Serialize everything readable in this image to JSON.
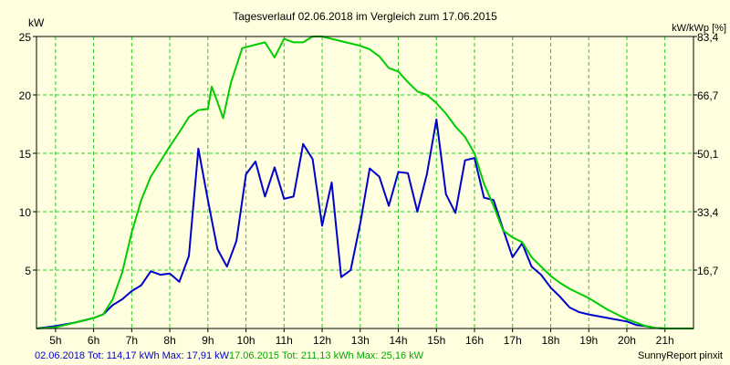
{
  "chart_data": {
    "type": "line",
    "title": "Tagesverlauf 02.06.2018 im Vergleich zum 17.06.2015",
    "ylabel_left": "kW",
    "ylabel_right": "kW/kWp [%]",
    "x_ticks": [
      "5h",
      "6h",
      "7h",
      "8h",
      "9h",
      "10h",
      "11h",
      "12h",
      "13h",
      "14h",
      "15h",
      "16h",
      "17h",
      "18h",
      "19h",
      "20h",
      "21h"
    ],
    "xlim": [
      4.5,
      21.75
    ],
    "y_ticks_left": [
      "5",
      "10",
      "15",
      "20",
      "25"
    ],
    "y_ticks_right": [
      "16,7",
      "33,4",
      "50,1",
      "66,7",
      "83,4"
    ],
    "ylim": [
      0,
      25
    ],
    "grid": true,
    "series": [
      {
        "name": "02.06.2018",
        "color": "#0000cc",
        "points": [
          [
            4.5,
            0
          ],
          [
            5,
            0.2
          ],
          [
            5.5,
            0.5
          ],
          [
            6,
            0.9
          ],
          [
            6.25,
            1.2
          ],
          [
            6.5,
            2.0
          ],
          [
            6.75,
            2.5
          ],
          [
            7,
            3.2
          ],
          [
            7.25,
            3.7
          ],
          [
            7.5,
            4.9
          ],
          [
            7.75,
            4.6
          ],
          [
            8,
            4.7
          ],
          [
            8.25,
            4.0
          ],
          [
            8.5,
            6.2
          ],
          [
            8.75,
            15.4
          ],
          [
            9,
            11.0
          ],
          [
            9.25,
            6.8
          ],
          [
            9.5,
            5.3
          ],
          [
            9.75,
            7.5
          ],
          [
            10,
            13.2
          ],
          [
            10.25,
            14.3
          ],
          [
            10.5,
            11.3
          ],
          [
            10.75,
            13.8
          ],
          [
            11,
            11.1
          ],
          [
            11.25,
            11.3
          ],
          [
            11.5,
            15.8
          ],
          [
            11.75,
            14.5
          ],
          [
            12,
            8.8
          ],
          [
            12.25,
            12.5
          ],
          [
            12.5,
            4.4
          ],
          [
            12.75,
            5.0
          ],
          [
            13,
            9.0
          ],
          [
            13.25,
            13.7
          ],
          [
            13.5,
            13.0
          ],
          [
            13.75,
            10.5
          ],
          [
            14,
            13.4
          ],
          [
            14.25,
            13.3
          ],
          [
            14.5,
            10.0
          ],
          [
            14.75,
            13.2
          ],
          [
            15,
            17.9
          ],
          [
            15.25,
            11.5
          ],
          [
            15.5,
            9.9
          ],
          [
            15.75,
            14.4
          ],
          [
            16,
            14.6
          ],
          [
            16.25,
            11.2
          ],
          [
            16.5,
            11.0
          ],
          [
            16.75,
            8.5
          ],
          [
            17,
            6.1
          ],
          [
            17.25,
            7.3
          ],
          [
            17.5,
            5.3
          ],
          [
            17.75,
            4.6
          ],
          [
            18,
            3.5
          ],
          [
            18.25,
            2.7
          ],
          [
            18.5,
            1.8
          ],
          [
            18.75,
            1.4
          ],
          [
            19,
            1.2
          ],
          [
            19.5,
            0.9
          ],
          [
            20,
            0.6
          ],
          [
            20.25,
            0.3
          ],
          [
            20.5,
            0.2
          ],
          [
            20.75,
            0.05
          ],
          [
            21,
            0
          ],
          [
            21.75,
            0
          ]
        ]
      },
      {
        "name": "17.06.2015",
        "color": "#00cc00",
        "points": [
          [
            4.5,
            0
          ],
          [
            5,
            0.1
          ],
          [
            5.5,
            0.5
          ],
          [
            6,
            0.9
          ],
          [
            6.25,
            1.2
          ],
          [
            6.5,
            2.5
          ],
          [
            6.75,
            4.8
          ],
          [
            7,
            8.2
          ],
          [
            7.25,
            11.0
          ],
          [
            7.5,
            13.0
          ],
          [
            7.75,
            14.3
          ],
          [
            8,
            15.6
          ],
          [
            8.25,
            16.8
          ],
          [
            8.5,
            18.1
          ],
          [
            8.75,
            18.7
          ],
          [
            9,
            18.8
          ],
          [
            9.1,
            20.7
          ],
          [
            9.25,
            19.4
          ],
          [
            9.4,
            18.0
          ],
          [
            9.6,
            21.0
          ],
          [
            9.9,
            24.0
          ],
          [
            10.25,
            24.3
          ],
          [
            10.5,
            24.5
          ],
          [
            10.75,
            23.2
          ],
          [
            11,
            24.8
          ],
          [
            11.25,
            24.5
          ],
          [
            11.5,
            24.5
          ],
          [
            11.75,
            25.0
          ],
          [
            12,
            25.0
          ],
          [
            12.5,
            24.6
          ],
          [
            13,
            24.2
          ],
          [
            13.25,
            23.9
          ],
          [
            13.5,
            23.3
          ],
          [
            13.75,
            22.3
          ],
          [
            14,
            22.0
          ],
          [
            14.25,
            21.1
          ],
          [
            14.5,
            20.3
          ],
          [
            14.75,
            20.0
          ],
          [
            15,
            19.3
          ],
          [
            15.25,
            18.4
          ],
          [
            15.5,
            17.3
          ],
          [
            15.75,
            16.4
          ],
          [
            16,
            15.0
          ],
          [
            16.25,
            12.4
          ],
          [
            16.5,
            10.5
          ],
          [
            16.75,
            8.4
          ],
          [
            17,
            7.8
          ],
          [
            17.25,
            7.4
          ],
          [
            17.5,
            6.1
          ],
          [
            17.75,
            5.3
          ],
          [
            18,
            4.5
          ],
          [
            18.25,
            3.9
          ],
          [
            18.5,
            3.4
          ],
          [
            18.75,
            3.0
          ],
          [
            19,
            2.6
          ],
          [
            19.25,
            2.1
          ],
          [
            19.5,
            1.6
          ],
          [
            19.75,
            1.2
          ],
          [
            20,
            0.8
          ],
          [
            20.25,
            0.5
          ],
          [
            20.5,
            0.2
          ],
          [
            20.75,
            0.05
          ],
          [
            21,
            0
          ],
          [
            21.75,
            0
          ]
        ]
      }
    ]
  },
  "footer": {
    "legend_2018": "02.06.2018 Tot: 114,17 kWh Max: 17,91 kW",
    "legend_2015": "17.06.2015 Tot: 211,13 kWh Max: 25,16 kW",
    "credit": "SunnyReport pinxit"
  }
}
